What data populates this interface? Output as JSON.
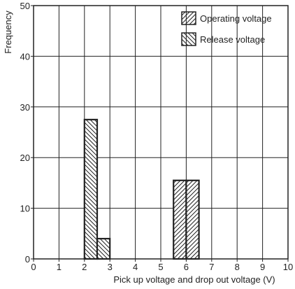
{
  "chart_data": {
    "type": "bar",
    "xlabel": "Pick up voltage and drop out voltage (V)",
    "ylabel": "Frequency",
    "xlim": [
      0,
      10
    ],
    "ylim": [
      0,
      50
    ],
    "x_ticks": [
      "0",
      "1",
      "2",
      "3",
      "4",
      "5",
      "6",
      "7",
      "8",
      "9",
      "10"
    ],
    "y_ticks": [
      "0",
      "10",
      "20",
      "30",
      "40",
      "50"
    ],
    "grid": true,
    "legend_position": "top-right",
    "series": [
      {
        "name": "Operating voltage",
        "hatch": "forward-diagonal",
        "bins": [
          {
            "x0": 5.5,
            "x1": 6.0,
            "value": 15.5
          },
          {
            "x0": 6.0,
            "x1": 6.5,
            "value": 15.5
          }
        ]
      },
      {
        "name": "Release voltage",
        "hatch": "back-diagonal",
        "bins": [
          {
            "x0": 2.0,
            "x1": 2.5,
            "value": 27.5
          },
          {
            "x0": 2.5,
            "x1": 3.0,
            "value": 4
          }
        ]
      }
    ]
  }
}
